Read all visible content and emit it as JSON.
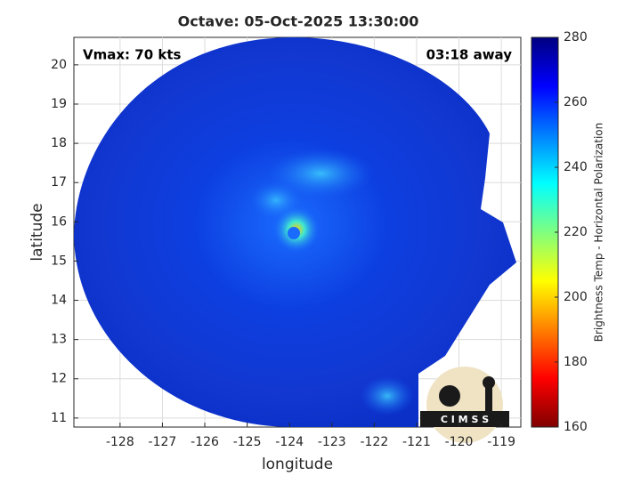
{
  "chart_data": {
    "type": "image",
    "title": "Octave: 05-Oct-2025 13:30:00",
    "xlabel": "longitude",
    "ylabel": "latitude",
    "annotations": [
      "Vmax: 70 kts",
      "03:18 away"
    ],
    "xlim": [
      -129.09,
      -118.54
    ],
    "ylim": [
      10.77,
      20.7
    ],
    "xticks": [
      -128,
      -127,
      -126,
      -125,
      -124,
      -123,
      -122,
      -121,
      -120,
      -119
    ],
    "yticks": [
      11,
      12,
      13,
      14,
      15,
      16,
      17,
      18,
      19,
      20
    ],
    "grid": true,
    "colorbar": {
      "label": "Brightness Temp - Horizontal Polarization",
      "clim": [
        160,
        280
      ],
      "ticks": [
        160,
        180,
        200,
        220,
        240,
        260,
        280
      ],
      "colormap": "jet"
    },
    "logo_text": "C I M S S"
  }
}
